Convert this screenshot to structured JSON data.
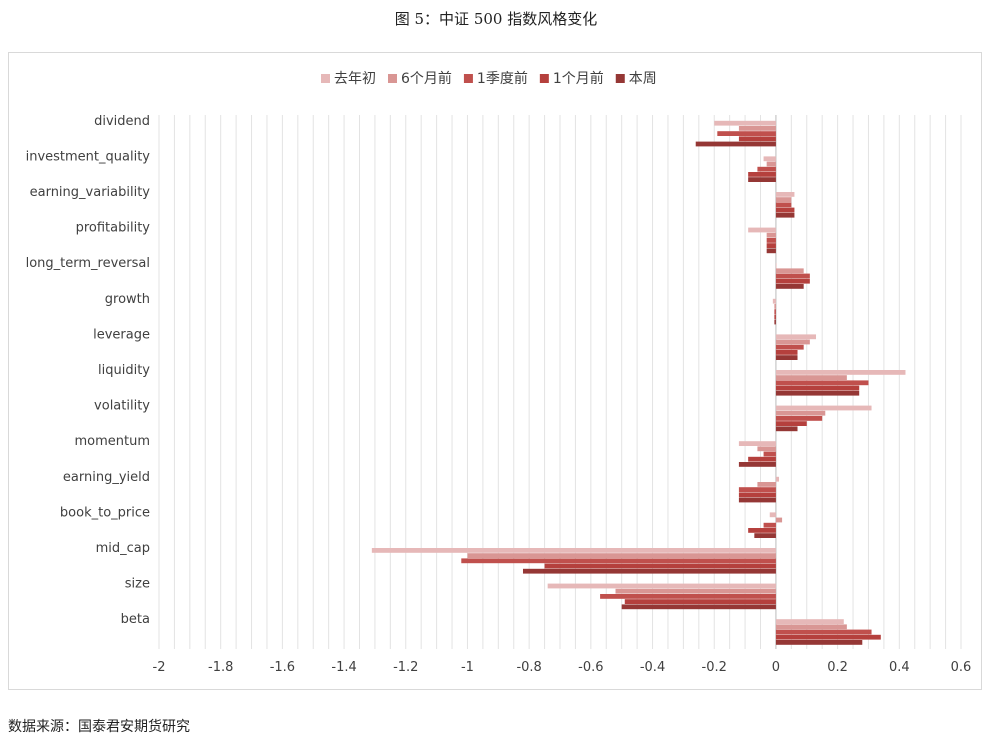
{
  "figure_title": "图 5：中证 500 指数风格变化",
  "source_note": "数据来源：国泰君安期货研究",
  "chart_data": {
    "type": "bar",
    "orientation": "horizontal",
    "categories": [
      "dividend",
      "investment_quality",
      "earning_variability",
      "profitability",
      "long_term_reversal",
      "growth",
      "leverage",
      "liquidity",
      "volatility",
      "momentum",
      "earning_yield",
      "book_to_price",
      "mid_cap",
      "size",
      "beta"
    ],
    "series": [
      {
        "name": "去年初",
        "color": "#e6b8b8",
        "values": [
          -0.2,
          -0.04,
          0.06,
          -0.09,
          0.0,
          -0.01,
          0.13,
          0.42,
          0.31,
          -0.12,
          0.01,
          -0.02,
          -1.31,
          -0.74,
          0.22
        ]
      },
      {
        "name": "6个月前",
        "color": "#d99694",
        "values": [
          -0.12,
          -0.03,
          0.05,
          -0.03,
          0.09,
          -0.005,
          0.11,
          0.23,
          0.16,
          -0.06,
          -0.06,
          0.02,
          -1.0,
          -0.52,
          0.23
        ]
      },
      {
        "name": "1季度前",
        "color": "#c0504d",
        "values": [
          -0.19,
          -0.06,
          0.05,
          -0.03,
          0.11,
          -0.005,
          0.09,
          0.3,
          0.15,
          -0.04,
          -0.12,
          -0.04,
          -1.02,
          -0.57,
          0.31
        ]
      },
      {
        "name": "1个月前",
        "color": "#b5403d",
        "values": [
          -0.12,
          -0.09,
          0.06,
          -0.03,
          0.11,
          -0.005,
          0.07,
          0.27,
          0.1,
          -0.09,
          -0.12,
          -0.09,
          -0.75,
          -0.49,
          0.34
        ]
      },
      {
        "name": "本周",
        "color": "#953735",
        "values": [
          -0.26,
          -0.09,
          0.06,
          -0.03,
          0.09,
          -0.005,
          0.07,
          0.27,
          0.07,
          -0.12,
          -0.12,
          -0.07,
          -0.82,
          -0.5,
          0.28
        ]
      }
    ],
    "xlim": [
      -2,
      0.6
    ],
    "xticks": [
      "-2",
      "-1.8",
      "-1.6",
      "-1.4",
      "-1.2",
      "-1",
      "-0.8",
      "-0.6",
      "-0.4",
      "-0.2",
      "0",
      "0.2",
      "0.4",
      "0.6"
    ],
    "grid": true,
    "legend_position": "top"
  }
}
